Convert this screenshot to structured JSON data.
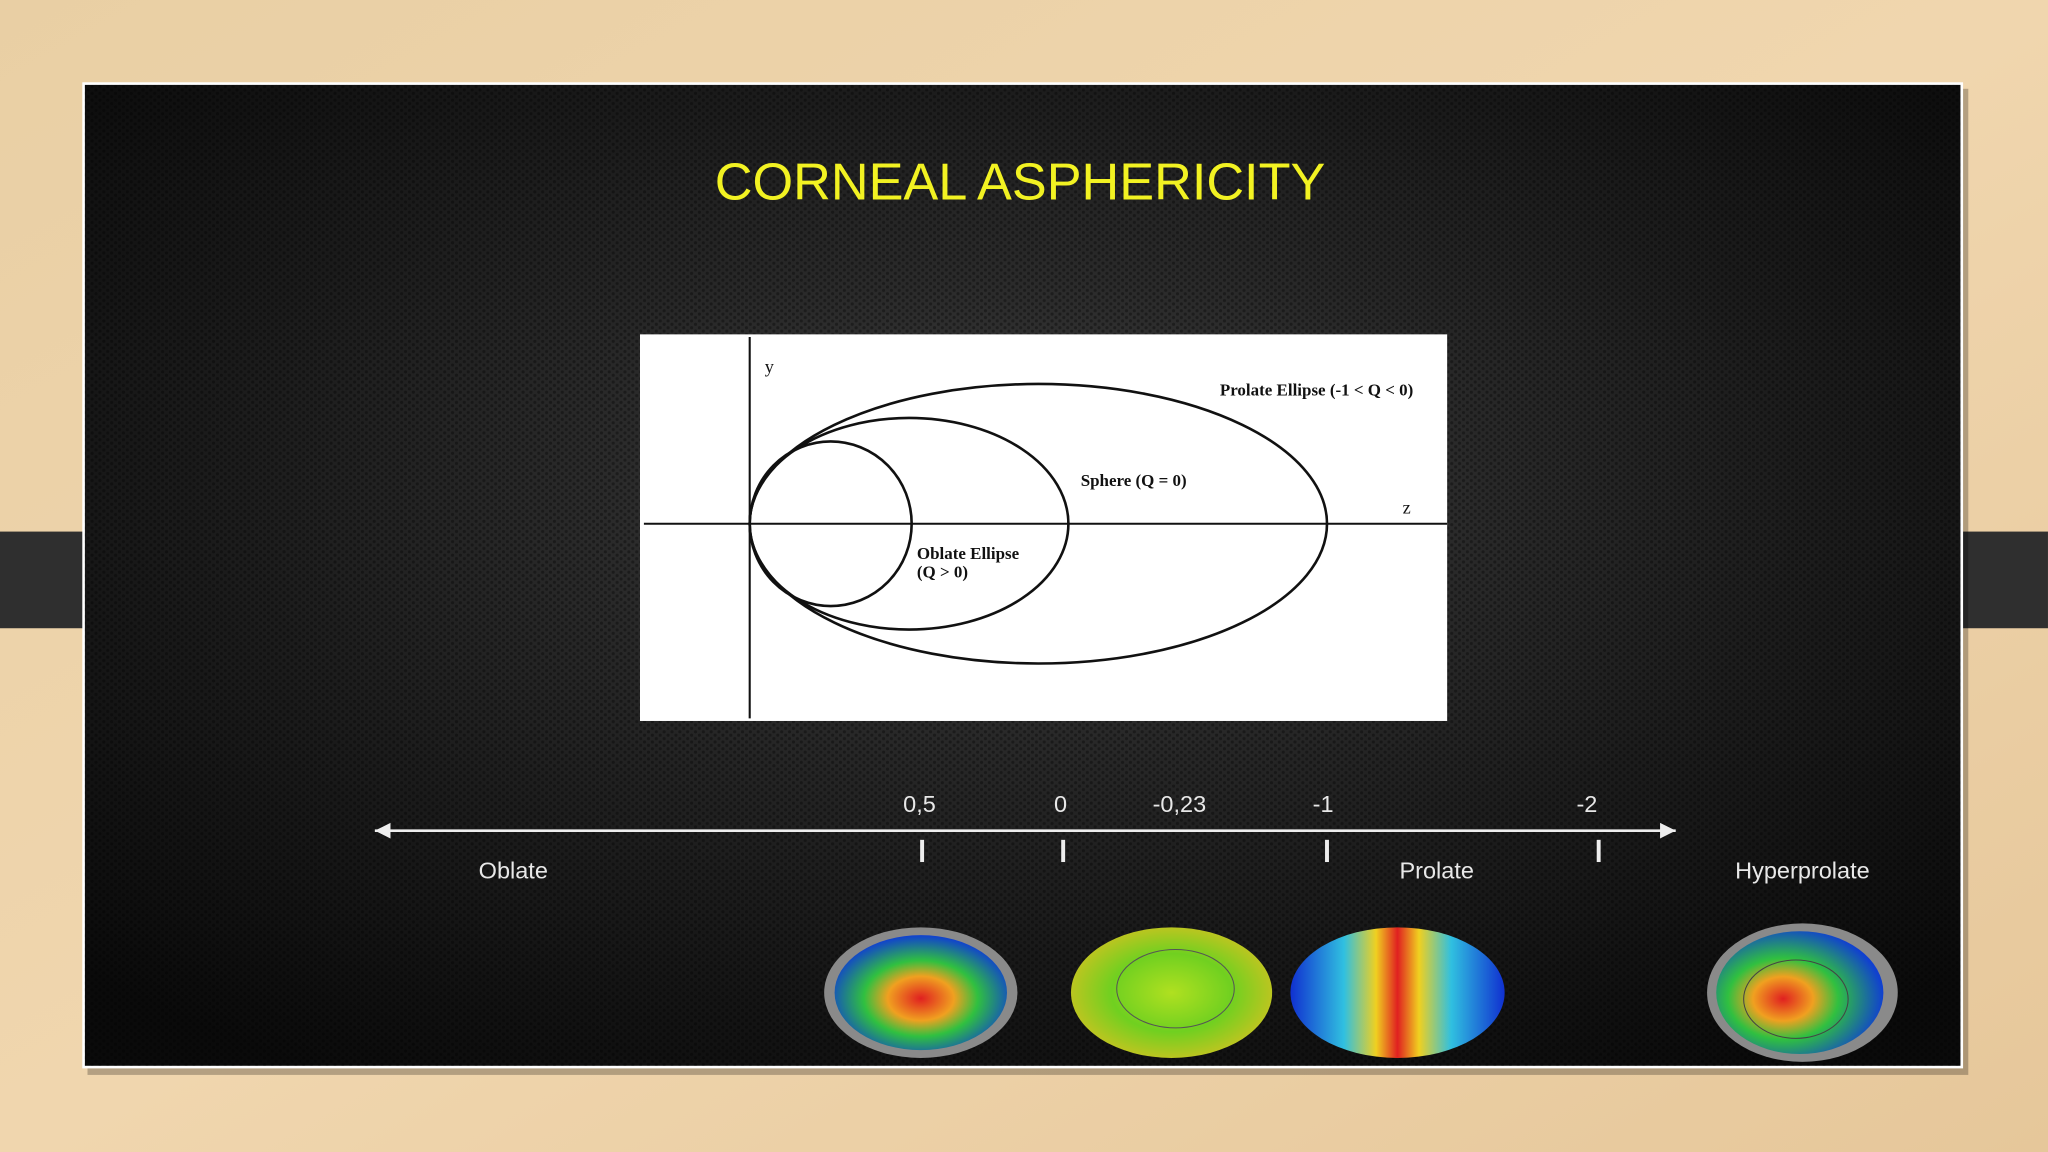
{
  "slide": {
    "title": "CORNEAL ASPHERICITY",
    "diagram": {
      "y_axis": "y",
      "z_axis": "z",
      "prolate": "Prolate Ellipse (-1 < Q < 0)",
      "sphere": "Sphere (Q = 0)",
      "oblate": [
        "Oblate Ellipse",
        "(Q > 0)"
      ]
    },
    "scale": {
      "ticks": [
        "0,5",
        "0",
        "-0,23",
        "-1",
        "-2"
      ],
      "regions": [
        "Oblate",
        "Prolate",
        "Hyperprolate"
      ]
    }
  }
}
